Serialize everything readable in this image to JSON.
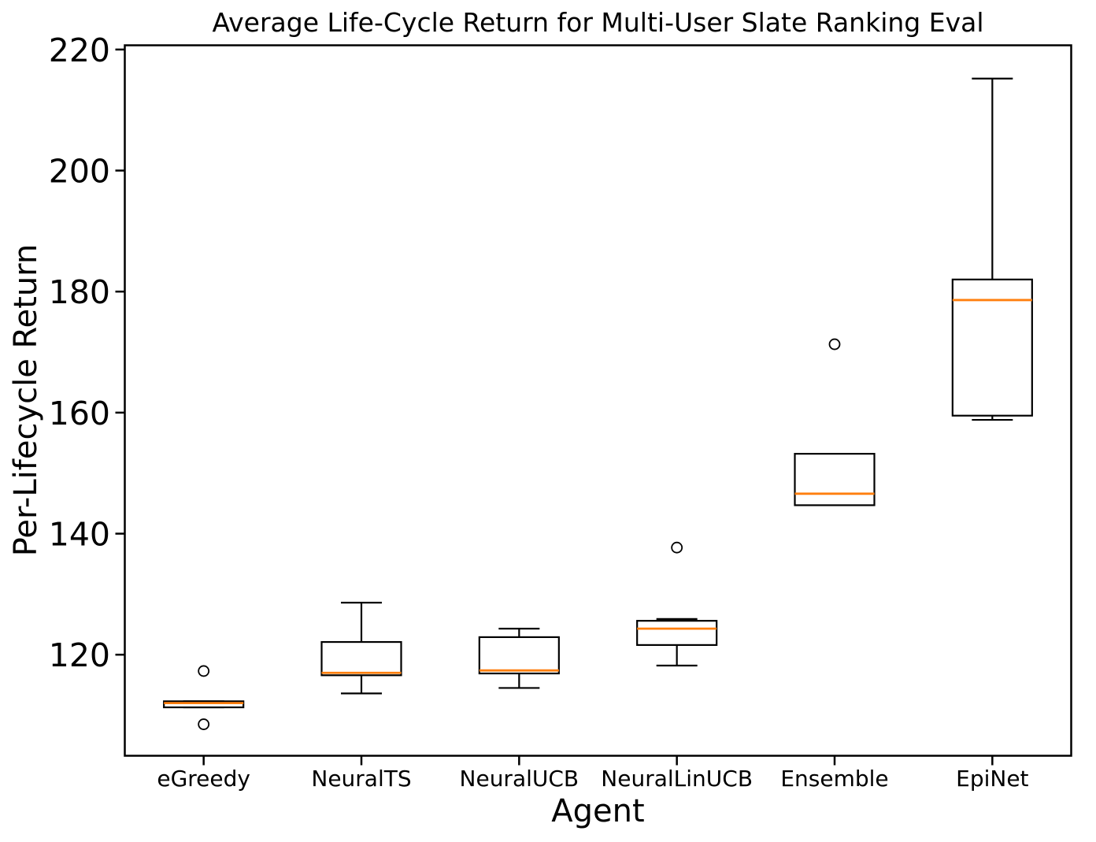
{
  "chart_data": {
    "type": "boxplot",
    "title": "Average Life-Cycle Return for Multi-User Slate Ranking Eval",
    "xlabel": "Agent",
    "ylabel": "Per-Lifecycle Return",
    "categories": [
      "eGreedy",
      "NeuralTS",
      "NeuralUCB",
      "NeuralLinUCB",
      "Ensemble",
      "EpiNet"
    ],
    "yticks": [
      120,
      140,
      160,
      180,
      200,
      220
    ],
    "ylim": [
      103.3,
      220.7
    ],
    "grid": false,
    "legend": null,
    "colors": {
      "box_edge": "#000000",
      "median": "#ff7f0e",
      "text": "#000000",
      "background": "#ffffff"
    },
    "boxes": [
      {
        "label": "eGreedy",
        "whislo": 111.3,
        "q1": 111.3,
        "med": 112.0,
        "q3": 112.3,
        "whishi": 112.3,
        "fliers": [
          117.3,
          108.5
        ]
      },
      {
        "label": "NeuralTS",
        "whislo": 113.6,
        "q1": 116.6,
        "med": 117.0,
        "q3": 122.1,
        "whishi": 128.6,
        "fliers": []
      },
      {
        "label": "NeuralUCB",
        "whislo": 114.5,
        "q1": 116.9,
        "med": 117.4,
        "q3": 122.9,
        "whishi": 124.3,
        "fliers": []
      },
      {
        "label": "NeuralLinUCB",
        "whislo": 118.2,
        "q1": 121.6,
        "med": 124.3,
        "q3": 125.6,
        "whishi": 125.9,
        "fliers": [
          137.7
        ]
      },
      {
        "label": "Ensemble",
        "whislo": 144.7,
        "q1": 144.7,
        "med": 146.6,
        "q3": 153.2,
        "whishi": 153.2,
        "fliers": [
          171.3
        ]
      },
      {
        "label": "EpiNet",
        "whislo": 158.8,
        "q1": 159.5,
        "med": 178.6,
        "q3": 182.0,
        "whishi": 215.2,
        "fliers": []
      }
    ]
  }
}
